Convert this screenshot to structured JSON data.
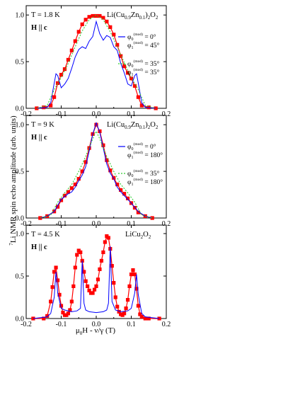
{
  "figure": {
    "ylabel": "7Li NMR spin echo amplitude (arb. units)",
    "xlabel": "μ0H - ν/γ (T)"
  },
  "chart_data": [
    {
      "type": "line",
      "panel": "top",
      "temperature": "T = 1.8 K",
      "field": "H || c",
      "compound": "Li(Cu0.9Zn0.1)2O2",
      "xlim": [
        -0.2,
        0.2
      ],
      "ylim": [
        0,
        1.1
      ],
      "xticks": [
        -0.2,
        -0.1,
        0.0,
        0.1,
        0.2
      ],
      "yticks": [
        0.0,
        0.5,
        1.0
      ],
      "legend": [
        {
          "name_a": "φ0(mod) = 0°",
          "name_b": "φ1(mod) = 45°",
          "style": "blue-solid"
        },
        {
          "name_a": "φ0(mod) = 35°",
          "name_b": "φ1(mod) = 35°",
          "style": "green-dotted"
        }
      ],
      "series": [
        {
          "name": "data",
          "color": "#ff0000",
          "x": [
            -0.17,
            -0.15,
            -0.13,
            -0.12,
            -0.11,
            -0.1,
            -0.09,
            -0.08,
            -0.07,
            -0.06,
            -0.05,
            -0.04,
            -0.03,
            -0.02,
            -0.01,
            0.0,
            0.01,
            0.02,
            0.03,
            0.04,
            0.05,
            0.06,
            0.07,
            0.08,
            0.09,
            0.1,
            0.11,
            0.12,
            0.13,
            0.15,
            0.17
          ],
          "y": [
            0.0,
            0.01,
            0.03,
            0.12,
            0.27,
            0.36,
            0.42,
            0.52,
            0.62,
            0.72,
            0.82,
            0.9,
            0.95,
            0.98,
            0.99,
            0.99,
            0.99,
            0.97,
            0.93,
            0.87,
            0.79,
            0.68,
            0.56,
            0.45,
            0.38,
            0.32,
            0.24,
            0.12,
            0.03,
            0.01,
            0.0
          ]
        },
        {
          "name": "fit-blue",
          "color": "#0000ff",
          "x": [
            -0.17,
            -0.14,
            -0.13,
            -0.12,
            -0.115,
            -0.11,
            -0.1,
            -0.09,
            -0.08,
            -0.07,
            -0.06,
            -0.05,
            -0.04,
            -0.03,
            -0.02,
            -0.01,
            0.0,
            0.01,
            0.02,
            0.03,
            0.04,
            0.05,
            0.06,
            0.07,
            0.08,
            0.09,
            0.1,
            0.11,
            0.115,
            0.12,
            0.13,
            0.14,
            0.17
          ],
          "y": [
            0.0,
            0.01,
            0.06,
            0.27,
            0.37,
            0.35,
            0.22,
            0.26,
            0.32,
            0.43,
            0.55,
            0.63,
            0.66,
            0.64,
            0.72,
            0.77,
            0.93,
            0.8,
            0.73,
            0.78,
            0.76,
            0.66,
            0.62,
            0.48,
            0.38,
            0.26,
            0.24,
            0.35,
            0.37,
            0.27,
            0.06,
            0.01,
            0.0
          ]
        },
        {
          "name": "fit-green",
          "color": "#33cc33",
          "x": [
            -0.17,
            -0.14,
            -0.12,
            -0.1,
            -0.08,
            -0.06,
            -0.04,
            -0.02,
            0.0,
            0.02,
            0.04,
            0.06,
            0.08,
            0.1,
            0.12,
            0.14,
            0.17
          ],
          "y": [
            0.0,
            0.03,
            0.2,
            0.33,
            0.48,
            0.66,
            0.83,
            0.95,
            1.0,
            0.95,
            0.82,
            0.66,
            0.49,
            0.33,
            0.2,
            0.03,
            0.0
          ]
        }
      ]
    },
    {
      "type": "line",
      "panel": "middle",
      "temperature": "T = 9 K",
      "field": "H || c",
      "compound": "Li(Cu0.9Zn0.1)2O2",
      "xlim": [
        -0.2,
        0.2
      ],
      "ylim": [
        0,
        1.1
      ],
      "xticks": [
        -0.2,
        -0.1,
        0.0,
        0.1,
        0.2
      ],
      "yticks": [
        0.0,
        0.5,
        1.0
      ],
      "legend": [
        {
          "name_a": "φ0(mod) = 0°",
          "name_b": "φ1(mod) = 180°",
          "style": "blue-solid"
        },
        {
          "name_a": "φ0(mod) = 35°",
          "name_b": "φ1(mod) = 180°",
          "style": "green-dotted"
        }
      ],
      "series": [
        {
          "name": "data",
          "color": "#ff0000",
          "x": [
            -0.16,
            -0.14,
            -0.12,
            -0.11,
            -0.1,
            -0.09,
            -0.08,
            -0.07,
            -0.06,
            -0.05,
            -0.04,
            -0.03,
            -0.02,
            -0.01,
            0.0,
            0.01,
            0.02,
            0.03,
            0.04,
            0.05,
            0.06,
            0.07,
            0.08,
            0.09,
            0.1,
            0.11,
            0.12,
            0.14,
            0.16
          ],
          "y": [
            0.0,
            0.02,
            0.07,
            0.12,
            0.19,
            0.24,
            0.28,
            0.32,
            0.36,
            0.42,
            0.5,
            0.6,
            0.75,
            0.9,
            1.0,
            0.93,
            0.78,
            0.62,
            0.51,
            0.43,
            0.36,
            0.3,
            0.26,
            0.21,
            0.16,
            0.11,
            0.06,
            0.02,
            0.0
          ]
        },
        {
          "name": "fit-blue",
          "color": "#0000ff",
          "x": [
            -0.16,
            -0.14,
            -0.12,
            -0.1,
            -0.09,
            -0.08,
            -0.07,
            -0.06,
            -0.05,
            -0.04,
            -0.03,
            -0.02,
            -0.01,
            0.0,
            0.01,
            0.02,
            0.03,
            0.04,
            0.05,
            0.06,
            0.07,
            0.08,
            0.09,
            0.1,
            0.12,
            0.14,
            0.16
          ],
          "y": [
            0.0,
            0.02,
            0.07,
            0.2,
            0.23,
            0.26,
            0.28,
            0.33,
            0.4,
            0.46,
            0.55,
            0.72,
            0.9,
            1.02,
            0.92,
            0.75,
            0.58,
            0.48,
            0.42,
            0.33,
            0.28,
            0.24,
            0.2,
            0.16,
            0.07,
            0.02,
            0.0
          ]
        },
        {
          "name": "fit-green",
          "color": "#33cc33",
          "x": [
            -0.16,
            -0.13,
            -0.11,
            -0.09,
            -0.07,
            -0.05,
            -0.03,
            -0.01,
            0.0,
            0.01,
            0.03,
            0.05,
            0.07,
            0.09,
            0.11,
            0.13,
            0.16
          ],
          "y": [
            0.0,
            0.03,
            0.17,
            0.27,
            0.36,
            0.5,
            0.66,
            0.85,
            0.93,
            0.85,
            0.66,
            0.5,
            0.36,
            0.27,
            0.17,
            0.03,
            0.0
          ]
        }
      ]
    },
    {
      "type": "line",
      "panel": "bottom",
      "temperature": "T = 4.5 K",
      "field": "H || c",
      "compound": "LiCu2O2",
      "xlim": [
        -0.2,
        0.2
      ],
      "ylim": [
        0,
        1.1
      ],
      "xticks": [
        -0.2,
        -0.1,
        0.0,
        0.1,
        0.2
      ],
      "yticks": [
        0.0,
        0.5,
        1.0
      ],
      "xlabel": "μ0H - ν/γ (T)",
      "series": [
        {
          "name": "data",
          "color": "#ff0000",
          "x": [
            -0.18,
            -0.15,
            -0.14,
            -0.13,
            -0.125,
            -0.12,
            -0.115,
            -0.11,
            -0.105,
            -0.1,
            -0.095,
            -0.09,
            -0.085,
            -0.08,
            -0.075,
            -0.07,
            -0.065,
            -0.06,
            -0.055,
            -0.05,
            -0.045,
            -0.04,
            -0.035,
            -0.03,
            -0.025,
            -0.02,
            -0.015,
            -0.01,
            -0.005,
            0.0,
            0.005,
            0.01,
            0.015,
            0.02,
            0.025,
            0.03,
            0.035,
            0.04,
            0.045,
            0.05,
            0.055,
            0.06,
            0.065,
            0.07,
            0.075,
            0.08,
            0.085,
            0.09,
            0.095,
            0.1,
            0.105,
            0.11,
            0.115,
            0.12,
            0.125,
            0.13,
            0.14,
            0.15,
            0.18
          ],
          "y": [
            0.0,
            0.0,
            0.03,
            0.2,
            0.37,
            0.55,
            0.6,
            0.45,
            0.28,
            0.15,
            0.07,
            0.04,
            0.04,
            0.06,
            0.1,
            0.2,
            0.38,
            0.6,
            0.75,
            0.8,
            0.78,
            0.68,
            0.55,
            0.44,
            0.38,
            0.33,
            0.3,
            0.3,
            0.34,
            0.38,
            0.46,
            0.58,
            0.68,
            0.78,
            0.9,
            0.97,
            0.95,
            0.82,
            0.62,
            0.42,
            0.25,
            0.14,
            0.08,
            0.05,
            0.04,
            0.06,
            0.12,
            0.22,
            0.38,
            0.52,
            0.57,
            0.52,
            0.35,
            0.15,
            0.05,
            0.02,
            0.0,
            0.0,
            0.0
          ]
        },
        {
          "name": "fit-blue",
          "color": "#0000ff",
          "x": [
            -0.18,
            -0.14,
            -0.13,
            -0.12,
            -0.115,
            -0.11,
            -0.1,
            -0.09,
            -0.07,
            -0.055,
            -0.045,
            -0.04,
            -0.035,
            -0.03,
            -0.02,
            0.0,
            0.02,
            0.03,
            0.035,
            0.04,
            0.045,
            0.055,
            0.07,
            0.09,
            0.1,
            0.11,
            0.115,
            0.12,
            0.13,
            0.14,
            0.18
          ],
          "y": [
            0.0,
            0.02,
            0.06,
            0.25,
            0.55,
            0.3,
            0.12,
            0.1,
            0.08,
            0.09,
            0.12,
            0.68,
            0.18,
            0.1,
            0.08,
            0.07,
            0.08,
            0.1,
            0.18,
            0.85,
            0.2,
            0.1,
            0.08,
            0.09,
            0.12,
            0.3,
            0.52,
            0.28,
            0.06,
            0.02,
            0.0
          ]
        }
      ]
    }
  ]
}
